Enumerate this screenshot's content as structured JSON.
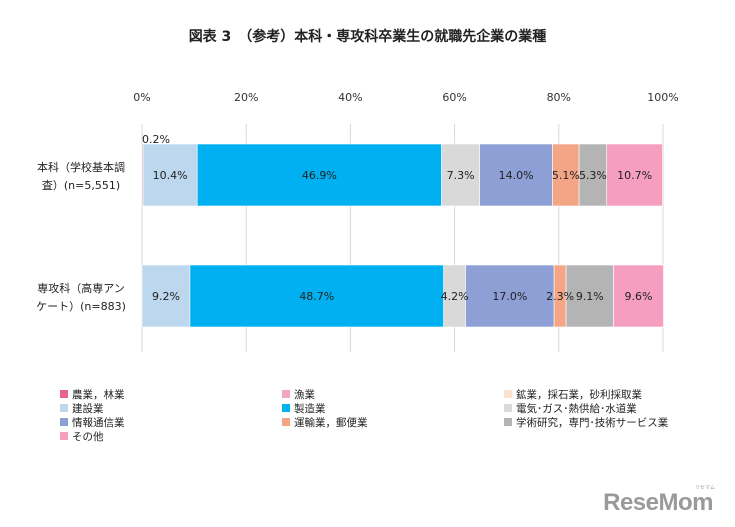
{
  "title": "図表 3　（参考）本科・専攻科卒業生の就職先企業の業種",
  "chart_data": {
    "type": "bar",
    "orientation": "horizontal",
    "stacked": true,
    "percent": true,
    "xlim": [
      0,
      100
    ],
    "x_ticks": [
      "0%",
      "20%",
      "40%",
      "60%",
      "80%",
      "100%"
    ],
    "categories": [
      {
        "lines": [
          "本科（学校基本調",
          "査）(n=5,551)"
        ]
      },
      {
        "lines": [
          "専攻科（高専アン",
          "ケート）(n=883)"
        ]
      }
    ],
    "series": [
      {
        "name": "農業，林業",
        "color": "#e8638c",
        "values": [
          0.2,
          0.0
        ],
        "labels": [
          "0.2%",
          ""
        ]
      },
      {
        "name": "漁業",
        "color": "#f3a5c0",
        "values": [
          0.0,
          0.0
        ],
        "labels": [
          "",
          ""
        ]
      },
      {
        "name": "鉱業，採石業，砂利採取業",
        "color": "#fbe4cf",
        "values": [
          0.0,
          0.0
        ],
        "labels": [
          "",
          ""
        ]
      },
      {
        "name": "建設業",
        "color": "#bdd7ee",
        "values": [
          10.4,
          9.2
        ],
        "labels": [
          "10.4%",
          "9.2%"
        ]
      },
      {
        "name": "製造業",
        "color": "#00b0f0",
        "values": [
          46.9,
          48.7
        ],
        "labels": [
          "46.9%",
          "48.7%"
        ]
      },
      {
        "name": "電気･ガス･熱供給･水道業",
        "color": "#d9d9d9",
        "values": [
          7.3,
          4.2
        ],
        "labels": [
          "7.3%",
          "4.2%"
        ]
      },
      {
        "name": "情報通信業",
        "color": "#8e9fd5",
        "values": [
          14.0,
          17.0
        ],
        "labels": [
          "14.0%",
          "17.0%"
        ]
      },
      {
        "name": "運輸業，郵便業",
        "color": "#f4a585",
        "values": [
          5.1,
          2.3
        ],
        "labels": [
          "5.1%",
          "2.3%"
        ]
      },
      {
        "name": "学術研究，専門･技術サービス業",
        "color": "#b4b4b4",
        "values": [
          5.3,
          9.1
        ],
        "labels": [
          "5.3%",
          "9.1%"
        ]
      },
      {
        "name": "その他",
        "color": "#f59ec0",
        "values": [
          10.7,
          9.6
        ],
        "labels": [
          "10.7%",
          "9.6%"
        ]
      }
    ]
  },
  "logo": {
    "text": "ReseMom",
    "kana": "リセマム"
  }
}
